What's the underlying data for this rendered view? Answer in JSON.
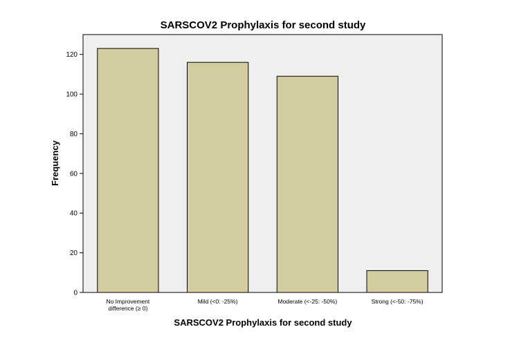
{
  "chart_data": {
    "type": "bar",
    "title": "SARSCOV2 Prophylaxis for second study",
    "xlabel": "SARSCOV2 Prophylaxis for second study",
    "ylabel": "Frequency",
    "categories": [
      [
        "No Improvement",
        "difference (≥ 0)"
      ],
      [
        "Mild (<0: -25%)"
      ],
      [
        "Moderate (<-25: -50%)"
      ],
      [
        "Strong (<-50: -75%)"
      ]
    ],
    "values": [
      123,
      116,
      109,
      11
    ],
    "ylim": [
      0,
      130
    ],
    "yticks": [
      0,
      20,
      40,
      60,
      80,
      100,
      120
    ],
    "grid": false,
    "colors": {
      "bar_fill": "#d2cc9f",
      "bar_stroke": "#000000",
      "plot_background": "#efefef",
      "page_background": "#ffffff"
    }
  }
}
